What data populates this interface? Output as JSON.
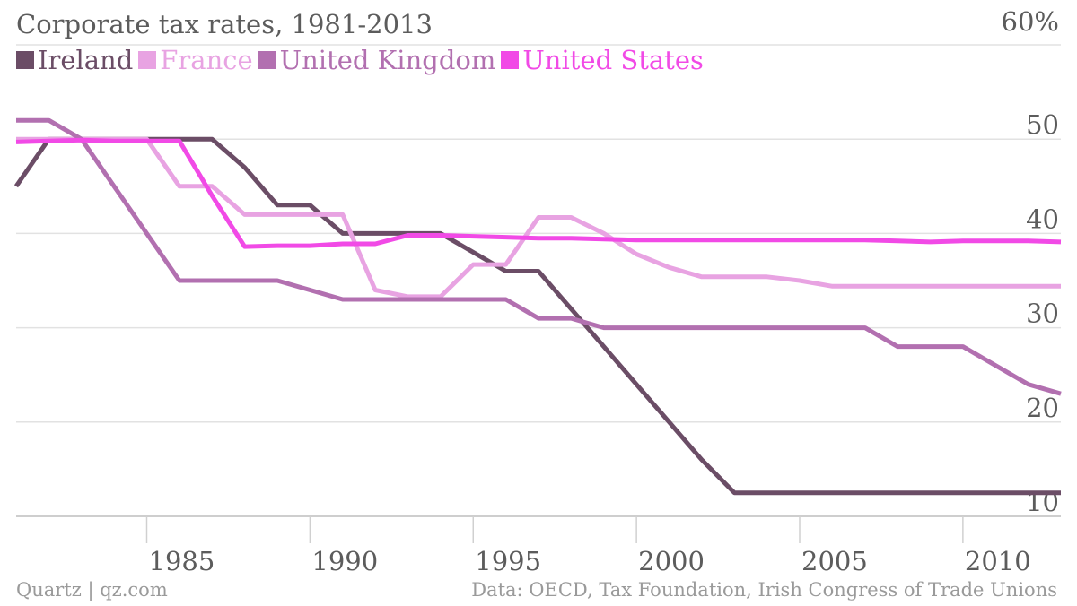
{
  "chart_data": {
    "type": "line",
    "title": "Corporate tax rates, 1981-2013",
    "y_unit_label": "60%",
    "ylim": [
      10,
      60
    ],
    "xlim": [
      1981,
      2013
    ],
    "y_ticks": [
      "10",
      "20",
      "30",
      "40",
      "50"
    ],
    "x_ticks": [
      "1985",
      "1990",
      "1995",
      "2000",
      "2005",
      "2010"
    ],
    "grid": true,
    "legend_position": "top-left",
    "series": [
      {
        "name": "Ireland",
        "color": "#6b4d66",
        "points": [
          [
            1981,
            45
          ],
          [
            1982,
            50
          ],
          [
            1983,
            50
          ],
          [
            1984,
            50
          ],
          [
            1985,
            50
          ],
          [
            1986,
            50
          ],
          [
            1987,
            50
          ],
          [
            1988,
            47
          ],
          [
            1989,
            43
          ],
          [
            1990,
            43
          ],
          [
            1991,
            40
          ],
          [
            1992,
            40
          ],
          [
            1993,
            40
          ],
          [
            1994,
            40
          ],
          [
            1995,
            38
          ],
          [
            1996,
            36
          ],
          [
            1997,
            36
          ],
          [
            1998,
            32
          ],
          [
            1999,
            28
          ],
          [
            2000,
            24
          ],
          [
            2001,
            20
          ],
          [
            2002,
            16
          ],
          [
            2003,
            12.5
          ],
          [
            2004,
            12.5
          ],
          [
            2005,
            12.5
          ],
          [
            2006,
            12.5
          ],
          [
            2007,
            12.5
          ],
          [
            2008,
            12.5
          ],
          [
            2009,
            12.5
          ],
          [
            2010,
            12.5
          ],
          [
            2011,
            12.5
          ],
          [
            2012,
            12.5
          ],
          [
            2013,
            12.5
          ]
        ]
      },
      {
        "name": "France",
        "color": "#e8a3e2",
        "points": [
          [
            1981,
            50
          ],
          [
            1982,
            50
          ],
          [
            1983,
            50
          ],
          [
            1984,
            50
          ],
          [
            1985,
            50
          ],
          [
            1986,
            45
          ],
          [
            1987,
            45
          ],
          [
            1988,
            42
          ],
          [
            1989,
            42
          ],
          [
            1990,
            42
          ],
          [
            1991,
            42
          ],
          [
            1992,
            34
          ],
          [
            1993,
            33.3
          ],
          [
            1994,
            33.3
          ],
          [
            1995,
            36.7
          ],
          [
            1996,
            36.7
          ],
          [
            1997,
            41.7
          ],
          [
            1998,
            41.7
          ],
          [
            1999,
            40
          ],
          [
            2000,
            37.8
          ],
          [
            2001,
            36.4
          ],
          [
            2002,
            35.4
          ],
          [
            2003,
            35.4
          ],
          [
            2004,
            35.4
          ],
          [
            2005,
            35
          ],
          [
            2006,
            34.4
          ],
          [
            2007,
            34.4
          ],
          [
            2008,
            34.4
          ],
          [
            2009,
            34.4
          ],
          [
            2010,
            34.4
          ],
          [
            2011,
            34.4
          ],
          [
            2012,
            34.4
          ],
          [
            2013,
            34.4
          ]
        ]
      },
      {
        "name": "United Kingdom",
        "color": "#b270b0",
        "points": [
          [
            1981,
            52
          ],
          [
            1982,
            52
          ],
          [
            1983,
            50
          ],
          [
            1984,
            45
          ],
          [
            1985,
            40
          ],
          [
            1986,
            35
          ],
          [
            1987,
            35
          ],
          [
            1988,
            35
          ],
          [
            1989,
            35
          ],
          [
            1990,
            34
          ],
          [
            1991,
            33
          ],
          [
            1992,
            33
          ],
          [
            1993,
            33
          ],
          [
            1994,
            33
          ],
          [
            1995,
            33
          ],
          [
            1996,
            33
          ],
          [
            1997,
            31
          ],
          [
            1998,
            31
          ],
          [
            1999,
            30
          ],
          [
            2000,
            30
          ],
          [
            2001,
            30
          ],
          [
            2002,
            30
          ],
          [
            2003,
            30
          ],
          [
            2004,
            30
          ],
          [
            2005,
            30
          ],
          [
            2006,
            30
          ],
          [
            2007,
            30
          ],
          [
            2008,
            28
          ],
          [
            2009,
            28
          ],
          [
            2010,
            28
          ],
          [
            2011,
            26
          ],
          [
            2012,
            24
          ],
          [
            2013,
            23
          ]
        ]
      },
      {
        "name": "United States",
        "color": "#f14ae6",
        "points": [
          [
            1981,
            49.7
          ],
          [
            1982,
            49.8
          ],
          [
            1983,
            49.9
          ],
          [
            1984,
            49.8
          ],
          [
            1985,
            49.8
          ],
          [
            1986,
            49.8
          ],
          [
            1987,
            44
          ],
          [
            1988,
            38.6
          ],
          [
            1989,
            38.7
          ],
          [
            1990,
            38.7
          ],
          [
            1991,
            38.9
          ],
          [
            1992,
            38.9
          ],
          [
            1993,
            39.8
          ],
          [
            1994,
            39.8
          ],
          [
            1995,
            39.7
          ],
          [
            1996,
            39.6
          ],
          [
            1997,
            39.5
          ],
          [
            1998,
            39.5
          ],
          [
            1999,
            39.4
          ],
          [
            2000,
            39.3
          ],
          [
            2001,
            39.3
          ],
          [
            2002,
            39.3
          ],
          [
            2003,
            39.3
          ],
          [
            2004,
            39.3
          ],
          [
            2005,
            39.3
          ],
          [
            2006,
            39.3
          ],
          [
            2007,
            39.3
          ],
          [
            2008,
            39.2
          ],
          [
            2009,
            39.1
          ],
          [
            2010,
            39.2
          ],
          [
            2011,
            39.2
          ],
          [
            2012,
            39.2
          ],
          [
            2013,
            39.1
          ]
        ]
      }
    ]
  },
  "footer": {
    "source_left": "Quartz | qz.com",
    "source_right": "Data: OECD, Tax Foundation, Irish Congress of Trade Unions"
  }
}
